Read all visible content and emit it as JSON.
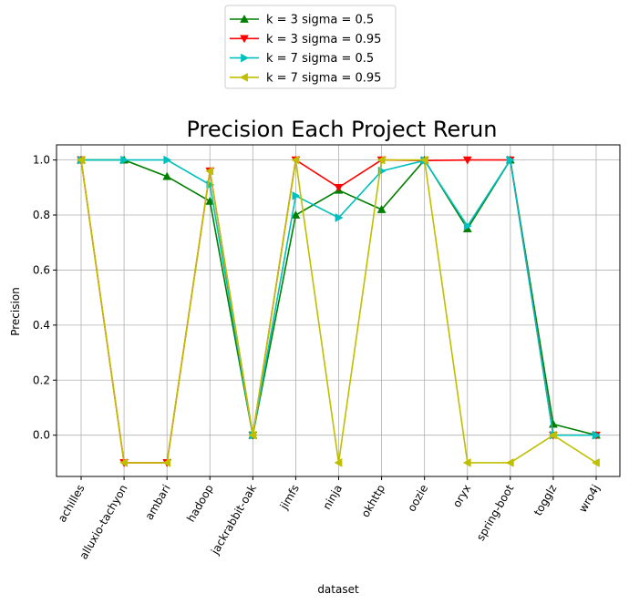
{
  "chart_data": {
    "type": "line",
    "title": "Precision Each Project Rerun",
    "xlabel": "dataset",
    "ylabel": "Precision",
    "ylim": [
      -0.15,
      1.055
    ],
    "yticks": [
      0.0,
      0.2,
      0.4,
      0.6,
      0.8,
      1.0
    ],
    "ytick_labels": [
      "0.0",
      "0.2",
      "0.4",
      "0.6",
      "0.8",
      "1.0"
    ],
    "grid": true,
    "legend_position": "top-center",
    "categories": [
      "achilles",
      "alluxio-tachyon",
      "ambari",
      "hadoop",
      "jackrabbit-oak",
      "jimfs",
      "ninja",
      "okhttp",
      "oozie",
      "oryx",
      "spring-boot",
      "togglz",
      "wro4j"
    ],
    "series": [
      {
        "name": "k = 3 sigma = 0.5",
        "color": "#008000",
        "marker": "triangle-up",
        "values": [
          1.0,
          1.0,
          0.94,
          0.85,
          0.0,
          0.8,
          0.89,
          0.82,
          1.0,
          0.75,
          1.0,
          0.04,
          0.0
        ]
      },
      {
        "name": "k = 3 sigma = 0.95",
        "color": "#ff0000",
        "marker": "triangle-down",
        "values": [
          1.0,
          -0.1,
          -0.1,
          0.96,
          0.0,
          1.0,
          0.9,
          1.0,
          0.998,
          1.0,
          1.0,
          0.0,
          0.0
        ]
      },
      {
        "name": "k = 7 sigma = 0.5",
        "color": "#00bfbf",
        "marker": "triangle-right",
        "values": [
          1.0,
          1.0,
          1.0,
          0.91,
          0.0,
          0.87,
          0.79,
          0.96,
          0.998,
          0.76,
          1.0,
          0.0,
          0.0
        ]
      },
      {
        "name": "k = 7 sigma = 0.95",
        "color": "#bfbf00",
        "marker": "triangle-left",
        "values": [
          1.0,
          -0.1,
          -0.1,
          0.96,
          0.0,
          1.0,
          -0.1,
          1.0,
          1.0,
          -0.1,
          -0.1,
          0.0,
          -0.1
        ]
      }
    ]
  }
}
